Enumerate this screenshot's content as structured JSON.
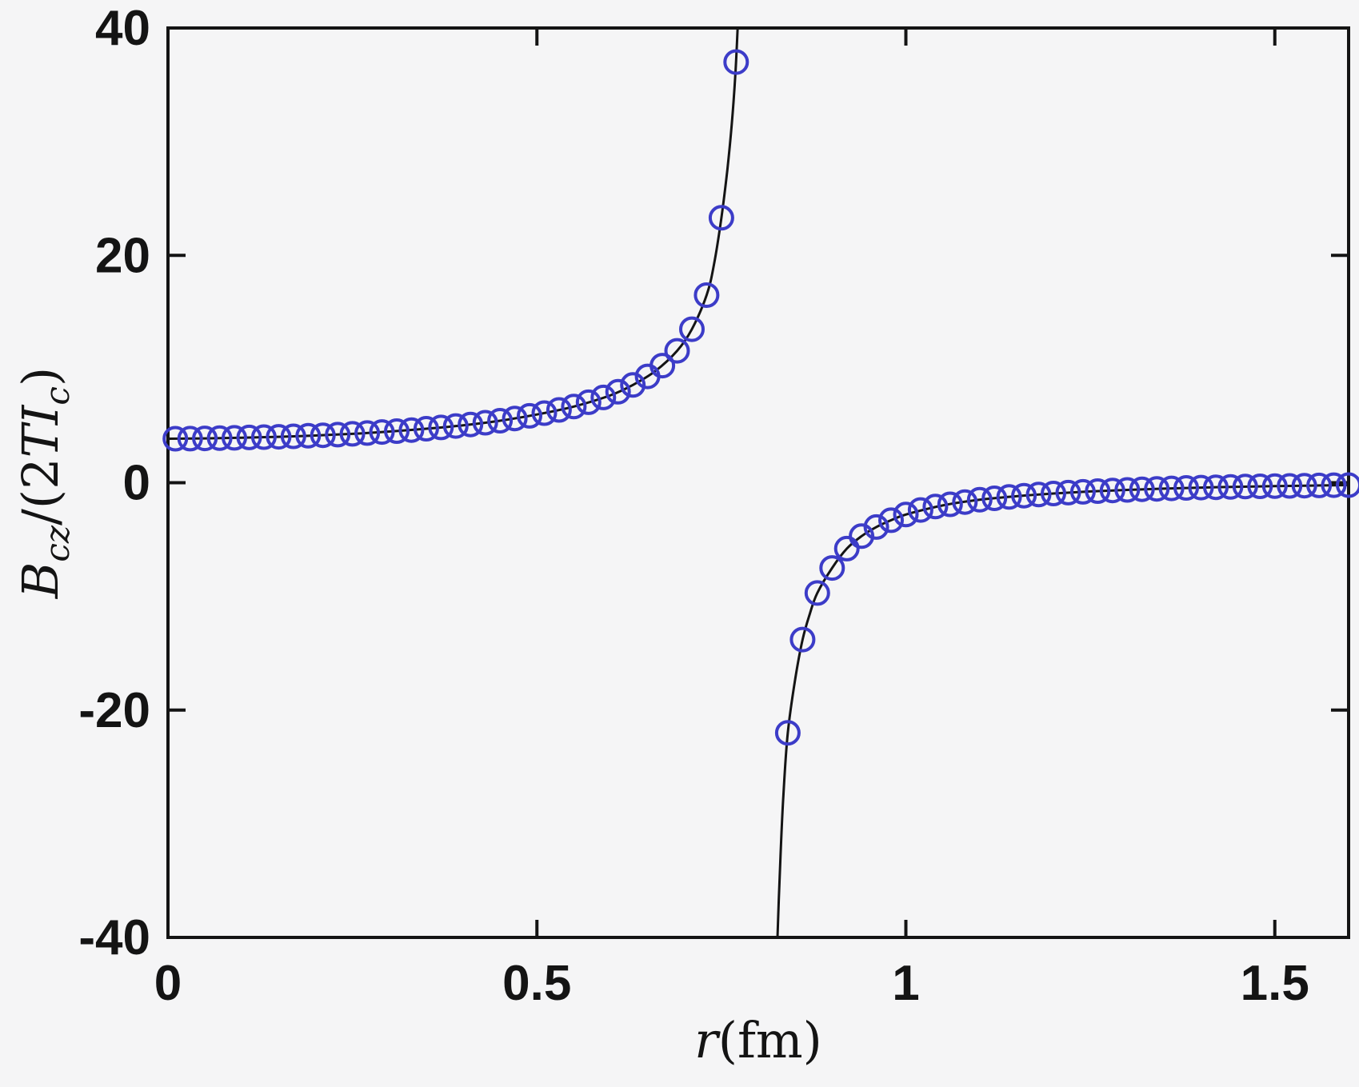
{
  "figure": {
    "background": "#f5f5f6",
    "axis_color": "#141414",
    "text_color": "#141414",
    "fit_line_color": "#141414",
    "marker_color": "#3c3cc8"
  },
  "chart_data": {
    "type": "scatter+line",
    "title": "",
    "xlabel_parts": [
      {
        "t": "r",
        "italic": true,
        "sub": false
      },
      {
        "t": "(fm)",
        "italic": false,
        "sub": false
      }
    ],
    "ylabel_parts": [
      {
        "t": "B",
        "italic": true,
        "sub": false
      },
      {
        "t": "cz",
        "italic": true,
        "sub": true
      },
      {
        "t": "/(2",
        "italic": false,
        "sub": false
      },
      {
        "t": "TI",
        "italic": true,
        "sub": false
      },
      {
        "t": "c",
        "italic": true,
        "sub": true
      },
      {
        "t": ")",
        "italic": false,
        "sub": false
      }
    ],
    "xlim": [
      0,
      1.6
    ],
    "ylim": [
      -40,
      40
    ],
    "xticks": [
      {
        "v": 0,
        "label": "0"
      },
      {
        "v": 0.5,
        "label": "0.5"
      },
      {
        "v": 1,
        "label": "1"
      },
      {
        "v": 1.5,
        "label": "1.5"
      }
    ],
    "yticks": [
      {
        "v": 40,
        "label": "40"
      },
      {
        "v": 20,
        "label": "20"
      },
      {
        "v": 0,
        "label": "0"
      },
      {
        "v": -20,
        "label": "-20"
      },
      {
        "v": -40,
        "label": "-40"
      }
    ],
    "grid": false,
    "legend": null,
    "series": [
      {
        "name": "fit-line-left-branch",
        "kind": "line",
        "x": [
          0.0,
          0.05,
          0.1,
          0.15,
          0.2,
          0.25,
          0.3,
          0.35,
          0.4,
          0.45,
          0.5,
          0.55,
          0.6,
          0.63,
          0.66,
          0.69,
          0.71,
          0.73,
          0.74,
          0.75,
          0.758,
          0.764,
          0.769,
          0.772,
          0.776
        ],
        "y": [
          3.87,
          3.9,
          3.96,
          4.04,
          4.15,
          4.3,
          4.5,
          4.75,
          5.05,
          5.45,
          6.0,
          6.7,
          7.7,
          8.6,
          9.8,
          11.6,
          13.5,
          16.5,
          19.2,
          23.3,
          27.5,
          31.5,
          36.0,
          40.0,
          46.0
        ]
      },
      {
        "name": "fit-line-right-branch",
        "kind": "line",
        "x": [
          0.8235,
          0.826,
          0.83,
          0.834,
          0.84,
          0.85,
          0.86,
          0.87,
          0.88,
          0.9,
          0.92,
          0.94,
          0.96,
          0.98,
          1.0,
          1.05,
          1.1,
          1.15,
          1.2,
          1.25,
          1.3,
          1.35,
          1.4,
          1.45,
          1.5,
          1.55,
          1.6
        ],
        "y": [
          -46.0,
          -40.0,
          -33.0,
          -27.5,
          -22.0,
          -17.3,
          -13.8,
          -11.5,
          -9.7,
          -7.5,
          -5.8,
          -4.7,
          -3.9,
          -3.3,
          -2.8,
          -2.0,
          -1.5,
          -1.19,
          -0.95,
          -0.77,
          -0.63,
          -0.52,
          -0.43,
          -0.36,
          -0.3,
          -0.25,
          -0.21
        ]
      },
      {
        "name": "data-markers-left-branch",
        "kind": "scatter",
        "x": [
          0.01,
          0.03,
          0.05,
          0.07,
          0.09,
          0.11,
          0.13,
          0.15,
          0.17,
          0.19,
          0.21,
          0.23,
          0.25,
          0.27,
          0.29,
          0.31,
          0.33,
          0.35,
          0.37,
          0.39,
          0.41,
          0.43,
          0.45,
          0.47,
          0.49,
          0.51,
          0.53,
          0.55,
          0.57,
          0.59,
          0.61,
          0.63,
          0.65,
          0.67,
          0.69,
          0.71,
          0.73,
          0.75,
          0.77
        ],
        "y": [
          3.87,
          3.88,
          3.9,
          3.92,
          3.95,
          3.98,
          4.01,
          4.04,
          4.08,
          4.13,
          4.17,
          4.23,
          4.3,
          4.37,
          4.46,
          4.54,
          4.63,
          4.75,
          4.86,
          4.99,
          5.12,
          5.28,
          5.45,
          5.65,
          5.88,
          6.12,
          6.4,
          6.7,
          7.08,
          7.5,
          8.0,
          8.6,
          9.35,
          10.3,
          11.6,
          13.5,
          16.5,
          23.3,
          37.0
        ]
      },
      {
        "name": "data-markers-right-branch",
        "kind": "scatter",
        "x": [
          0.84,
          0.86,
          0.88,
          0.9,
          0.92,
          0.94,
          0.96,
          0.98,
          1.0,
          1.02,
          1.04,
          1.06,
          1.08,
          1.1,
          1.12,
          1.14,
          1.16,
          1.18,
          1.2,
          1.22,
          1.24,
          1.26,
          1.28,
          1.3,
          1.32,
          1.34,
          1.36,
          1.38,
          1.4,
          1.42,
          1.44,
          1.46,
          1.48,
          1.5,
          1.52,
          1.54,
          1.56,
          1.58,
          1.6
        ],
        "y": [
          -22.0,
          -13.8,
          -9.7,
          -7.5,
          -5.8,
          -4.7,
          -3.9,
          -3.3,
          -2.8,
          -2.4,
          -2.1,
          -1.9,
          -1.7,
          -1.5,
          -1.37,
          -1.25,
          -1.14,
          -1.04,
          -0.95,
          -0.87,
          -0.8,
          -0.74,
          -0.68,
          -0.63,
          -0.58,
          -0.54,
          -0.5,
          -0.46,
          -0.43,
          -0.4,
          -0.37,
          -0.34,
          -0.32,
          -0.3,
          -0.28,
          -0.26,
          -0.24,
          -0.22,
          -0.21
        ]
      }
    ]
  }
}
